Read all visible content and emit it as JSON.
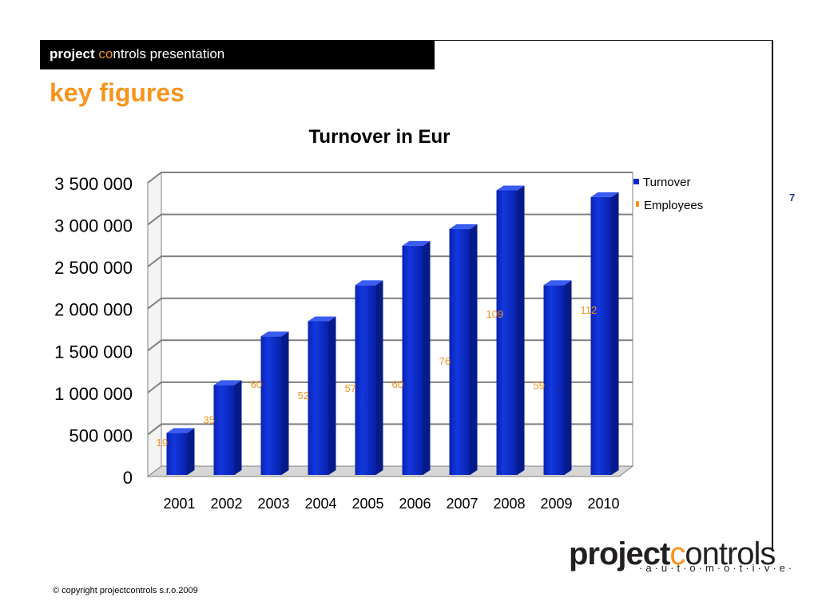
{
  "header": {
    "bold_part": "project",
    "accent_part": "co",
    "rest_part": "ntrols presentation"
  },
  "page_title": "key figures",
  "page_number": "7",
  "colors": {
    "accent": "#f7941d",
    "bar": "#0a28c8",
    "header_bg": "#000000"
  },
  "chart_data": {
    "type": "bar",
    "title": "Turnover in Eur",
    "categories": [
      "2001",
      "2002",
      "2003",
      "2004",
      "2005",
      "2006",
      "2007",
      "2008",
      "2009",
      "2010"
    ],
    "series": [
      {
        "name": "Turnover",
        "values": [
          520000,
          1090000,
          1670000,
          1850000,
          2280000,
          2750000,
          2950000,
          3410000,
          2280000,
          3330000
        ]
      },
      {
        "name": "Employees",
        "values": [
          19,
          35,
          60,
          52,
          57,
          60,
          76,
          109,
          59,
          112
        ]
      }
    ],
    "employee_labels": [
      "19",
      "35",
      "60",
      "52",
      "57",
      "60",
      "76",
      "109",
      "59",
      "112"
    ],
    "y_ticks": [
      "0",
      "500 000",
      "1 000 000",
      "1 500 000",
      "2 000 000",
      "2 500 000",
      "3 000 000",
      "3 500 000"
    ],
    "ylim": [
      0,
      3500000
    ],
    "grid": true,
    "legend_position": "right",
    "style": "3d-bars"
  },
  "logo": {
    "bold_part": "project",
    "accent_part": "c",
    "rest_part": "ontrols",
    "sub": "·a·u·t·o·m·o·t·i·v·e·"
  },
  "copyright": "© copyright projectcontrols s.r.o.2009"
}
